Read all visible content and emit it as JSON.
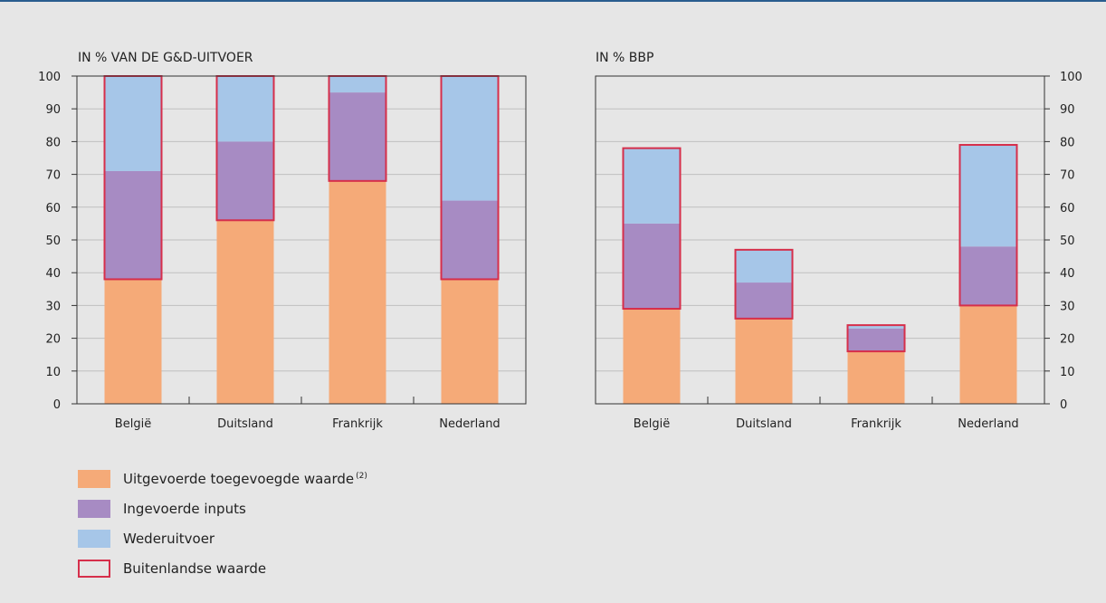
{
  "colors": {
    "uitgevoerde": "#f5aa78",
    "ingevoerde": "#a78bc3",
    "wederuitvoer": "#a6c6e8",
    "buitenlandse": "#d62f4b"
  },
  "chart_data": [
    {
      "type": "bar",
      "stacked": true,
      "title": "IN % VAN DE G&D-UITVOER",
      "categories": [
        "België",
        "Duitsland",
        "Frankrijk",
        "Nederland"
      ],
      "ylim": [
        0,
        100
      ],
      "yticks": [
        0,
        10,
        20,
        30,
        40,
        50,
        60,
        70,
        80,
        90,
        100
      ],
      "y_axis_side": "left",
      "grid": true,
      "series": [
        {
          "name": "Uitgevoerde toegevoegde waarde",
          "key": "uitgevoerde",
          "values": [
            38,
            56,
            68,
            38
          ]
        },
        {
          "name": "Ingevoerde inputs",
          "key": "ingevoerde",
          "values": [
            33,
            24,
            27,
            24
          ]
        },
        {
          "name": "Wederuitvoer",
          "key": "wederuitvoer",
          "values": [
            29,
            20,
            5,
            38
          ]
        }
      ],
      "buitenlandse_waarde": [
        [
          38,
          100
        ],
        [
          56,
          100
        ],
        [
          68,
          100
        ],
        [
          38,
          100
        ]
      ]
    },
    {
      "type": "bar",
      "stacked": true,
      "title": "IN % BBP",
      "categories": [
        "België",
        "Duitsland",
        "Frankrijk",
        "Nederland"
      ],
      "ylim": [
        0,
        100
      ],
      "yticks": [
        0,
        10,
        20,
        30,
        40,
        50,
        60,
        70,
        80,
        90,
        100
      ],
      "y_axis_side": "right",
      "grid": true,
      "series": [
        {
          "name": "Uitgevoerde toegevoegde waarde",
          "key": "uitgevoerde",
          "values": [
            29,
            26,
            16,
            30
          ]
        },
        {
          "name": "Ingevoerde inputs",
          "key": "ingevoerde",
          "values": [
            26,
            11,
            7,
            18
          ]
        },
        {
          "name": "Wederuitvoer",
          "key": "wederuitvoer",
          "values": [
            23,
            10,
            1,
            31
          ]
        }
      ],
      "buitenlandse_waarde": [
        [
          29,
          78
        ],
        [
          26,
          47
        ],
        [
          16,
          24
        ],
        [
          30,
          79
        ]
      ]
    }
  ],
  "legend": {
    "items": [
      {
        "label": "Uitgevoerde toegevoegde waarde",
        "sup": "(2)",
        "key": "uitgevoerde"
      },
      {
        "label": "Ingevoerde inputs",
        "sup": "",
        "key": "ingevoerde"
      },
      {
        "label": "Wederuitvoer",
        "sup": "",
        "key": "wederuitvoer"
      },
      {
        "label": "Buitenlandse waarde",
        "sup": "",
        "key": "buitenlandse",
        "outline": true
      }
    ]
  }
}
